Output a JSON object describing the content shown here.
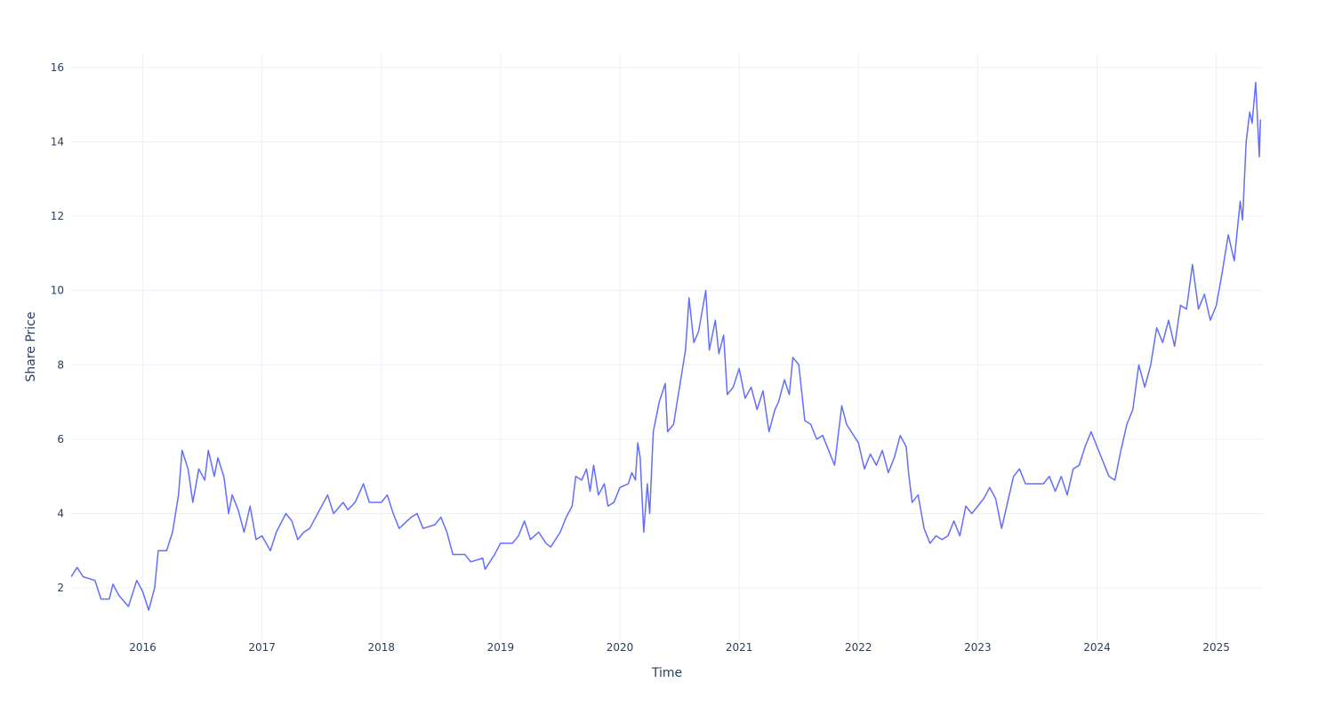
{
  "chart_data": {
    "type": "line",
    "x_label": "Time",
    "y_label": "Share Price",
    "color": "#636efa",
    "grid": true,
    "xlim": [
      2015.4,
      2025.39
    ],
    "ylim": [
      0.59,
      16.38
    ],
    "xticks": [
      2016,
      2017,
      2018,
      2019,
      2020,
      2021,
      2022,
      2023,
      2024,
      2025
    ],
    "yticks": [
      2,
      4,
      6,
      8,
      10,
      12,
      14,
      16
    ],
    "x": [
      2015.4,
      2015.45,
      2015.5,
      2015.6,
      2015.65,
      2015.72,
      2015.75,
      2015.8,
      2015.88,
      2015.95,
      2016.0,
      2016.05,
      2016.1,
      2016.13,
      2016.2,
      2016.25,
      2016.3,
      2016.33,
      2016.38,
      2016.42,
      2016.47,
      2016.52,
      2016.55,
      2016.6,
      2016.63,
      2016.68,
      2016.72,
      2016.75,
      2016.8,
      2016.85,
      2016.9,
      2016.95,
      2017.0,
      2017.07,
      2017.12,
      2017.2,
      2017.25,
      2017.3,
      2017.35,
      2017.4,
      2017.5,
      2017.55,
      2017.6,
      2017.68,
      2017.72,
      2017.78,
      2017.85,
      2017.9,
      2018.0,
      2018.05,
      2018.1,
      2018.15,
      2018.25,
      2018.3,
      2018.35,
      2018.45,
      2018.5,
      2018.55,
      2018.6,
      2018.7,
      2018.75,
      2018.85,
      2018.87,
      2018.95,
      2019.0,
      2019.1,
      2019.15,
      2019.2,
      2019.25,
      2019.32,
      2019.38,
      2019.42,
      2019.5,
      2019.55,
      2019.6,
      2019.63,
      2019.68,
      2019.72,
      2019.75,
      2019.78,
      2019.82,
      2019.87,
      2019.9,
      2019.95,
      2020.0,
      2020.07,
      2020.1,
      2020.13,
      2020.15,
      2020.17,
      2020.2,
      2020.23,
      2020.25,
      2020.28,
      2020.33,
      2020.38,
      2020.4,
      2020.45,
      2020.5,
      2020.55,
      2020.58,
      2020.62,
      2020.66,
      2020.72,
      2020.75,
      2020.8,
      2020.83,
      2020.87,
      2020.9,
      2020.95,
      2021.0,
      2021.05,
      2021.1,
      2021.15,
      2021.2,
      2021.25,
      2021.3,
      2021.33,
      2021.38,
      2021.42,
      2021.45,
      2021.5,
      2021.55,
      2021.6,
      2021.65,
      2021.7,
      2021.75,
      2021.8,
      2021.86,
      2021.9,
      2022.0,
      2022.05,
      2022.1,
      2022.15,
      2022.2,
      2022.25,
      2022.3,
      2022.35,
      2022.4,
      2022.42,
      2022.45,
      2022.5,
      2022.55,
      2022.6,
      2022.65,
      2022.7,
      2022.75,
      2022.8,
      2022.85,
      2022.9,
      2022.95,
      2023.0,
      2023.05,
      2023.1,
      2023.15,
      2023.2,
      2023.25,
      2023.3,
      2023.35,
      2023.4,
      2023.45,
      2023.55,
      2023.6,
      2023.65,
      2023.7,
      2023.75,
      2023.8,
      2023.85,
      2023.9,
      2023.95,
      2024.0,
      2024.05,
      2024.1,
      2024.15,
      2024.2,
      2024.25,
      2024.3,
      2024.35,
      2024.4,
      2024.45,
      2024.5,
      2024.55,
      2024.6,
      2024.65,
      2024.7,
      2024.75,
      2024.8,
      2024.85,
      2024.9,
      2024.95,
      2025.0,
      2025.05,
      2025.1,
      2025.15,
      2025.2,
      2025.22,
      2025.25,
      2025.28,
      2025.3,
      2025.33,
      2025.36,
      2025.37
    ],
    "values": [
      2.3,
      2.55,
      2.3,
      2.2,
      1.7,
      1.7,
      2.1,
      1.8,
      1.5,
      2.2,
      1.9,
      1.4,
      2.0,
      3.0,
      3.0,
      3.5,
      4.5,
      5.7,
      5.2,
      4.3,
      5.2,
      4.9,
      5.7,
      5.0,
      5.5,
      5.0,
      4.0,
      4.5,
      4.1,
      3.5,
      4.2,
      3.3,
      3.4,
      3.0,
      3.5,
      4.0,
      3.8,
      3.3,
      3.5,
      3.6,
      4.2,
      4.5,
      4.0,
      4.3,
      4.1,
      4.3,
      4.8,
      4.3,
      4.3,
      4.5,
      4.0,
      3.6,
      3.9,
      4.0,
      3.6,
      3.7,
      3.9,
      3.5,
      2.9,
      2.9,
      2.7,
      2.8,
      2.5,
      2.9,
      3.2,
      3.2,
      3.4,
      3.8,
      3.3,
      3.5,
      3.2,
      3.1,
      3.5,
      3.9,
      4.2,
      5.0,
      4.9,
      5.2,
      4.6,
      5.3,
      4.5,
      4.8,
      4.2,
      4.3,
      4.7,
      4.8,
      5.1,
      4.9,
      5.9,
      5.5,
      3.5,
      4.8,
      4.0,
      6.2,
      7.0,
      7.5,
      6.2,
      6.4,
      7.4,
      8.4,
      9.8,
      8.6,
      8.9,
      10.0,
      8.4,
      9.2,
      8.3,
      8.8,
      7.2,
      7.4,
      7.9,
      7.1,
      7.4,
      6.8,
      7.3,
      6.2,
      6.8,
      7.0,
      7.6,
      7.2,
      8.2,
      8.0,
      6.5,
      6.4,
      6.0,
      6.1,
      5.7,
      5.3,
      6.9,
      6.4,
      5.9,
      5.2,
      5.6,
      5.3,
      5.7,
      5.1,
      5.5,
      6.1,
      5.8,
      5.1,
      4.3,
      4.5,
      3.6,
      3.2,
      3.4,
      3.3,
      3.4,
      3.8,
      3.4,
      4.2,
      4.0,
      4.2,
      4.4,
      4.7,
      4.4,
      3.6,
      4.3,
      5.0,
      5.2,
      4.8,
      4.8,
      4.8,
      5.0,
      4.6,
      5.0,
      4.5,
      5.2,
      5.3,
      5.8,
      6.2,
      5.8,
      5.4,
      5.0,
      4.9,
      5.7,
      6.4,
      6.8,
      8.0,
      7.4,
      8.0,
      9.0,
      8.6,
      9.2,
      8.5,
      9.6,
      9.5,
      10.7,
      9.5,
      9.9,
      9.2,
      9.6,
      10.5,
      11.5,
      10.8,
      12.4,
      11.9,
      14.0,
      14.8,
      14.5,
      15.6,
      13.6,
      14.6
    ]
  }
}
